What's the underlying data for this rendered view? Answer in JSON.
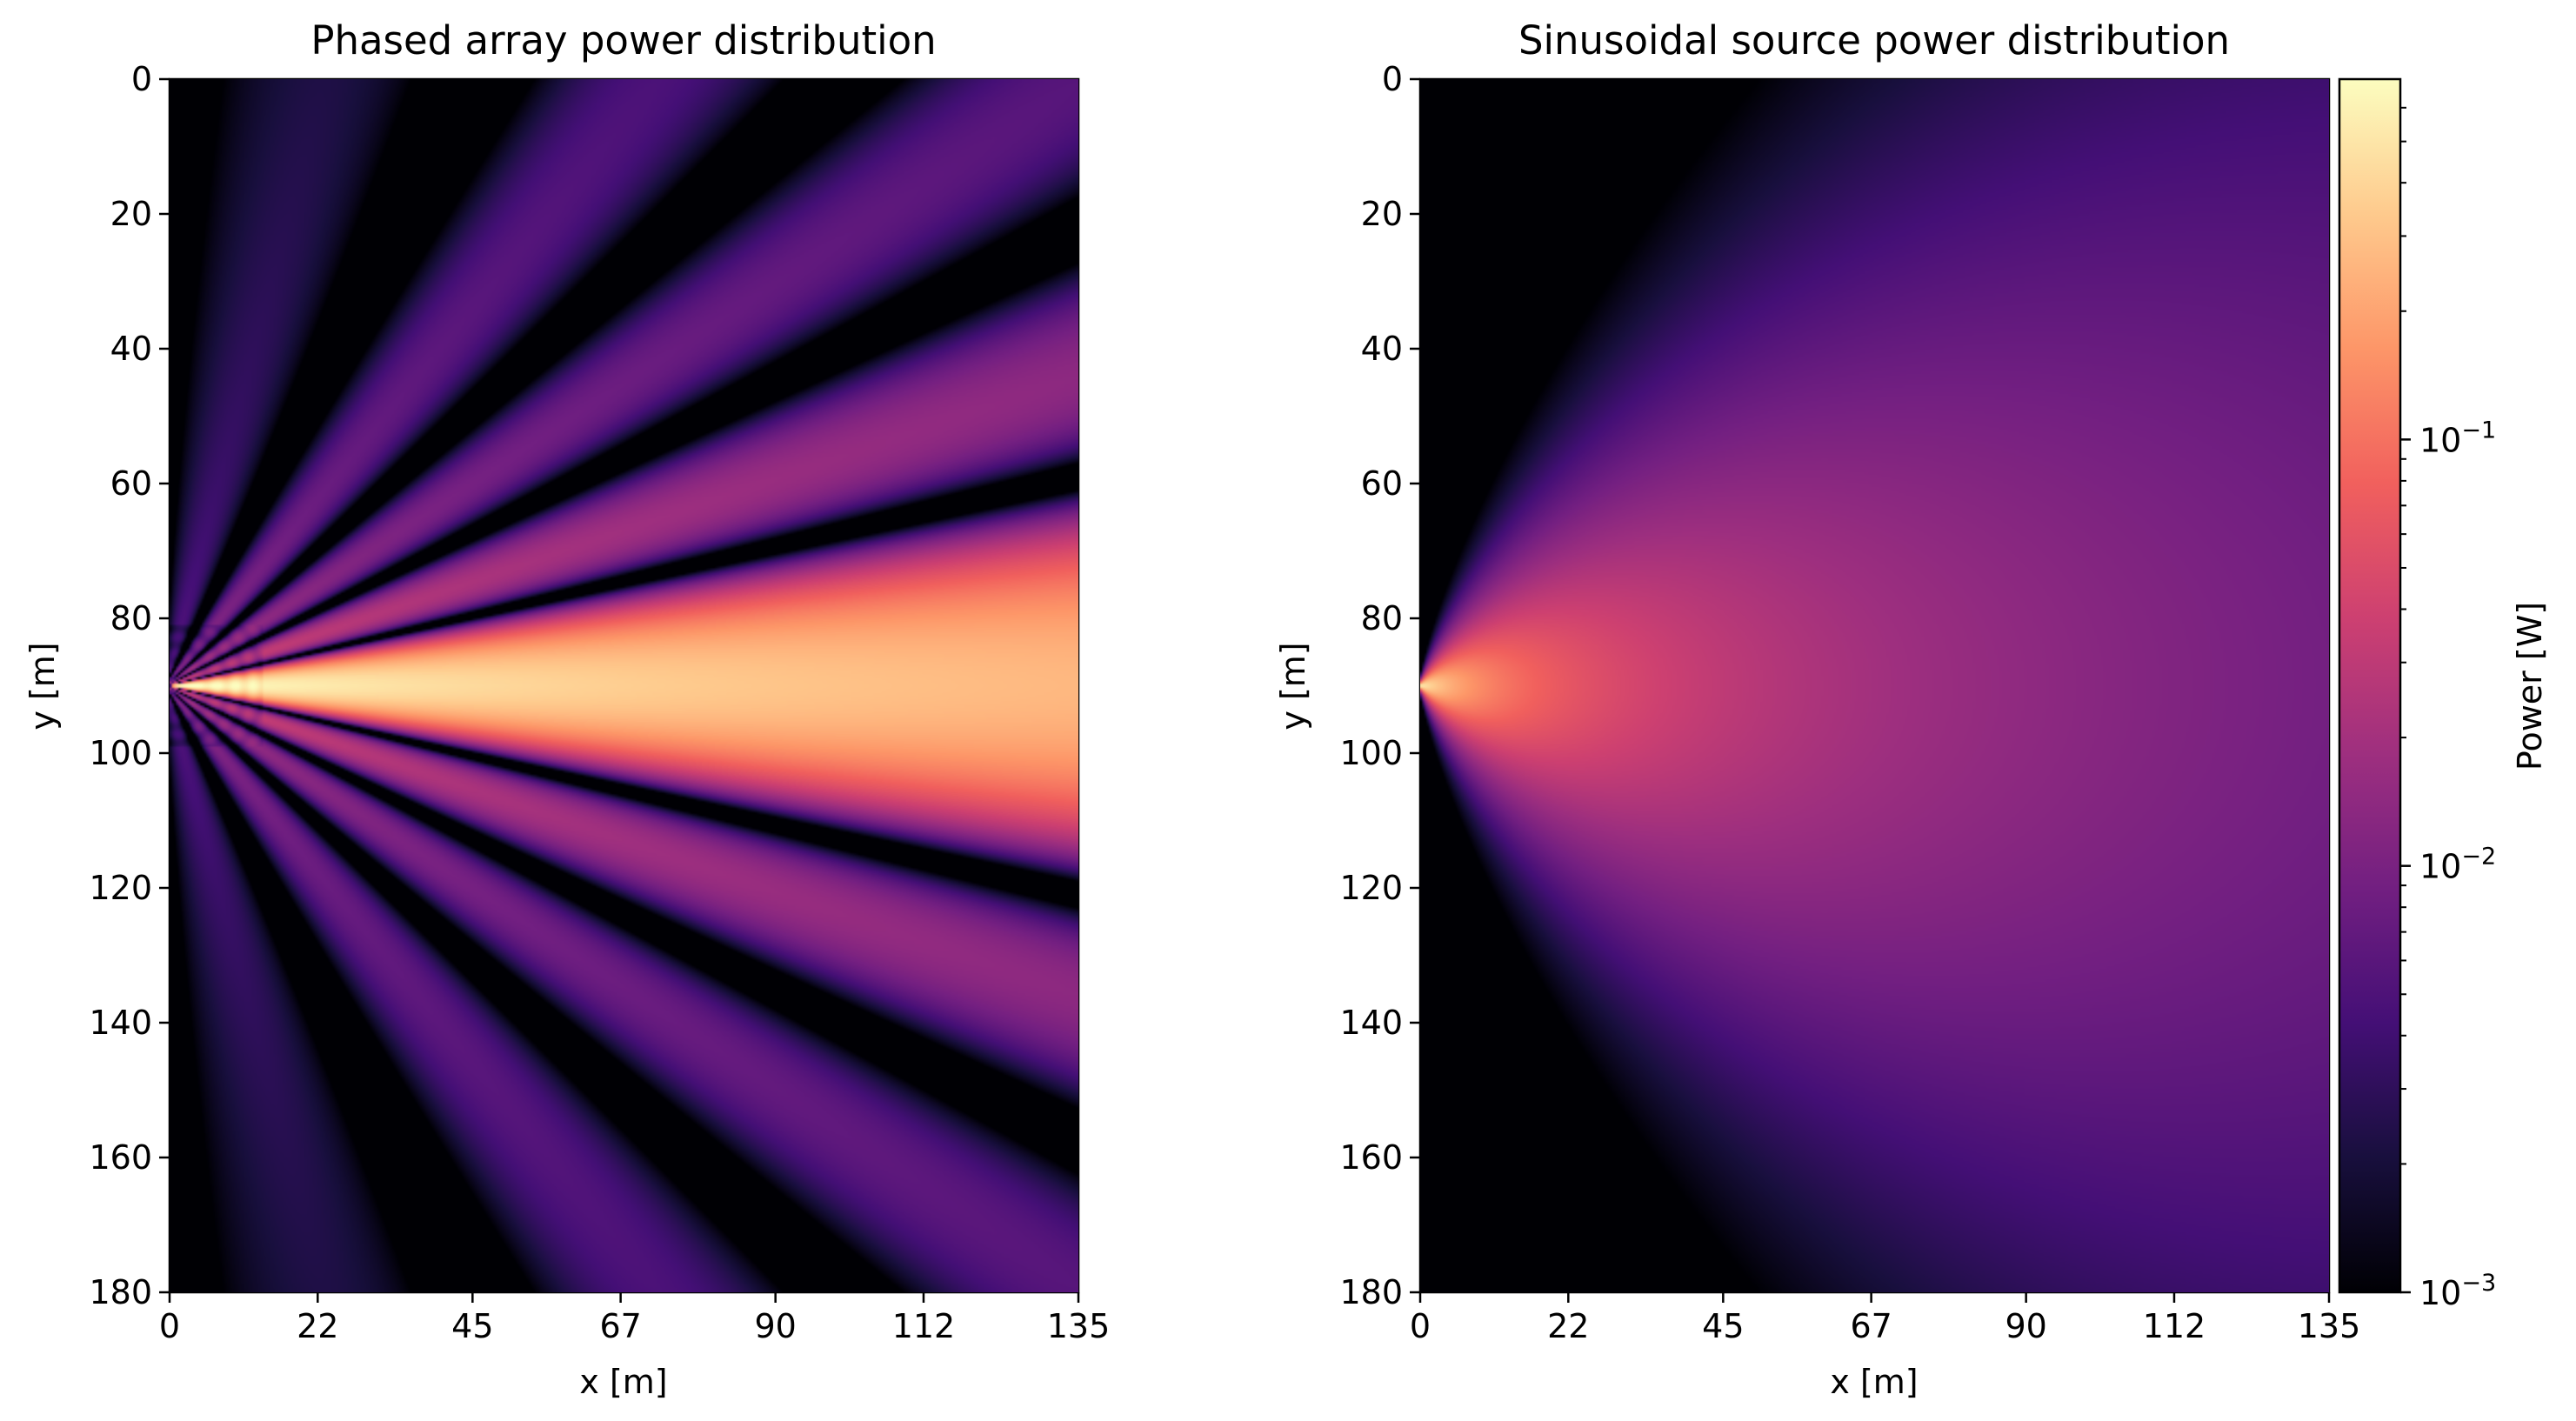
{
  "chart_data": [
    {
      "type": "heatmap",
      "title": "Phased array power distribution",
      "xlabel": "x [m]",
      "ylabel": "y [m]",
      "xlim": [
        0,
        135
      ],
      "ylim": [
        180,
        0
      ],
      "xticks": [
        0,
        22,
        45,
        67,
        90,
        112,
        135
      ],
      "yticks": [
        0,
        20,
        40,
        60,
        80,
        100,
        120,
        140,
        160,
        180
      ],
      "source_y": 90,
      "pattern": "multi-lobe beam: bright main lobe along y=90 with side lobes fanning out from the array near x=0"
    },
    {
      "type": "heatmap",
      "title": "Sinusoidal source power distribution",
      "xlabel": "x [m]",
      "ylabel": "y [m]",
      "xlim": [
        0,
        135
      ],
      "ylim": [
        180,
        0
      ],
      "xticks": [
        0,
        22,
        45,
        67,
        90,
        112,
        135
      ],
      "yticks": [
        0,
        20,
        40,
        60,
        80,
        100,
        120,
        140,
        160,
        180
      ],
      "source_y": 90,
      "pattern": "single point source near (0, 90) radiating outward with power decaying with distance"
    }
  ],
  "colorbar": {
    "label": "Power [W]",
    "scale": "log",
    "vmin": 0.001,
    "vmax": 0.7,
    "ticks": [
      {
        "value": 0.1,
        "base": "10",
        "exp": "−1"
      },
      {
        "value": 0.01,
        "base": "10",
        "exp": "−2"
      },
      {
        "value": 0.001,
        "base": "10",
        "exp": "−3"
      }
    ],
    "colormap": "magma"
  },
  "colors": {
    "magma": [
      "#000004",
      "#180f3d",
      "#440f76",
      "#721f81",
      "#9e2f7f",
      "#cd4071",
      "#f1605d",
      "#fd9668",
      "#feca8d",
      "#fcfdbf"
    ]
  }
}
